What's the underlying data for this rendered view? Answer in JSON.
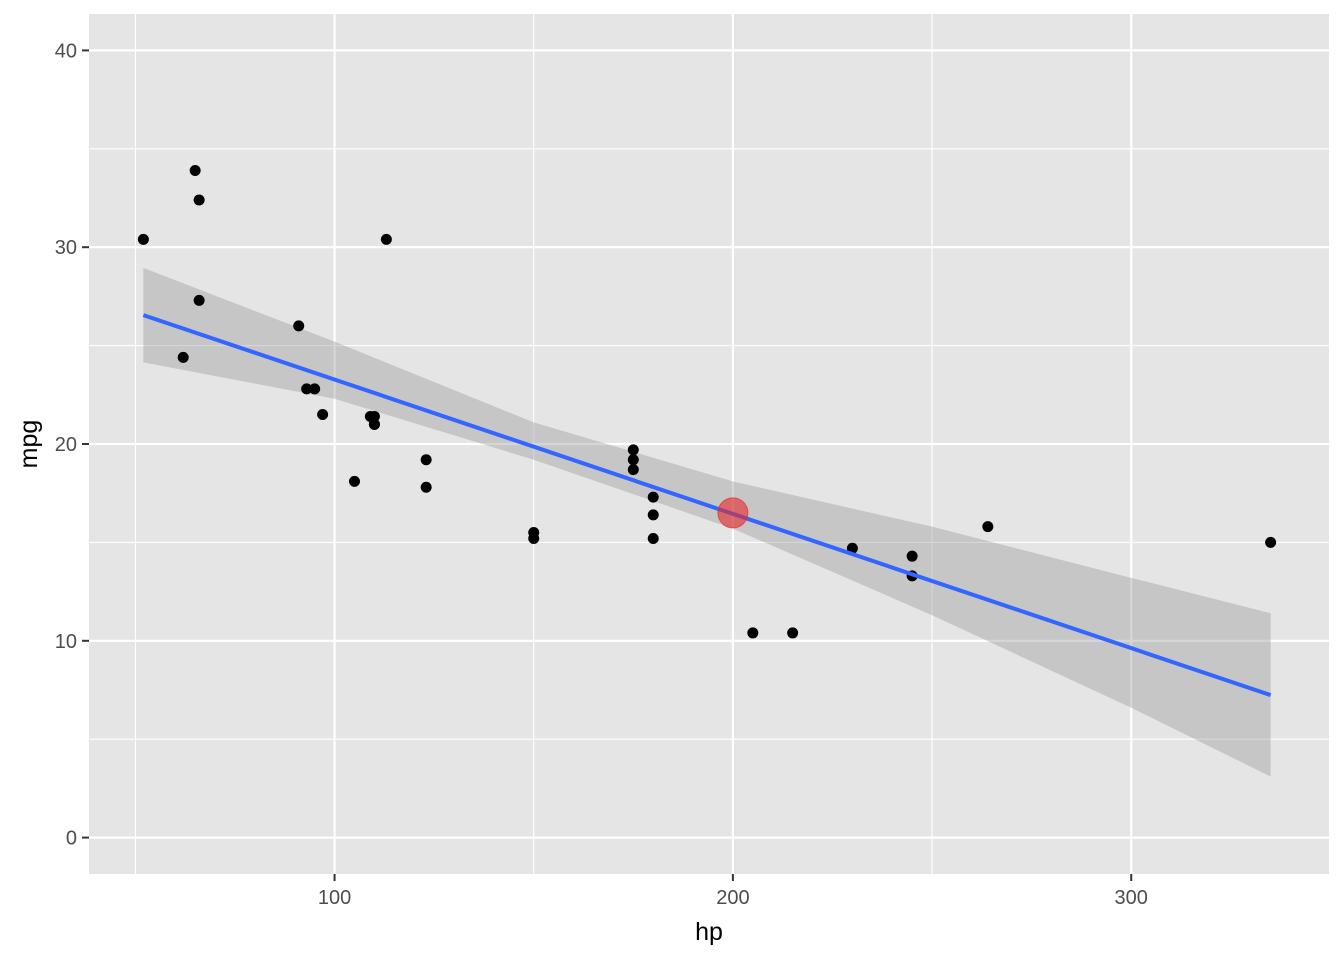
{
  "chart_data": {
    "type": "scatter",
    "title": "",
    "xlabel": "hp",
    "ylabel": "mpg",
    "xlim": [
      38.35,
      349.65
    ],
    "ylim": [
      -1.85,
      41.85
    ],
    "x_ticks": [
      100,
      200,
      300
    ],
    "y_ticks": [
      0,
      10,
      20,
      30,
      40
    ],
    "grid": true,
    "legend": "none",
    "points": [
      {
        "x": 110,
        "y": 21.0
      },
      {
        "x": 110,
        "y": 21.0
      },
      {
        "x": 93,
        "y": 22.8
      },
      {
        "x": 110,
        "y": 21.4
      },
      {
        "x": 175,
        "y": 18.7
      },
      {
        "x": 105,
        "y": 18.1
      },
      {
        "x": 245,
        "y": 14.3
      },
      {
        "x": 62,
        "y": 24.4
      },
      {
        "x": 95,
        "y": 22.8
      },
      {
        "x": 123,
        "y": 19.2
      },
      {
        "x": 123,
        "y": 17.8
      },
      {
        "x": 180,
        "y": 16.4
      },
      {
        "x": 180,
        "y": 17.3
      },
      {
        "x": 180,
        "y": 15.2
      },
      {
        "x": 205,
        "y": 10.4
      },
      {
        "x": 215,
        "y": 10.4
      },
      {
        "x": 230,
        "y": 14.7
      },
      {
        "x": 66,
        "y": 32.4
      },
      {
        "x": 52,
        "y": 30.4
      },
      {
        "x": 65,
        "y": 33.9
      },
      {
        "x": 97,
        "y": 21.5
      },
      {
        "x": 150,
        "y": 15.5
      },
      {
        "x": 150,
        "y": 15.2
      },
      {
        "x": 245,
        "y": 13.3
      },
      {
        "x": 175,
        "y": 19.2
      },
      {
        "x": 66,
        "y": 27.3
      },
      {
        "x": 91,
        "y": 26.0
      },
      {
        "x": 113,
        "y": 30.4
      },
      {
        "x": 264,
        "y": 15.8
      },
      {
        "x": 175,
        "y": 19.7
      },
      {
        "x": 335,
        "y": 15.0
      },
      {
        "x": 109,
        "y": 21.4
      }
    ],
    "fit_line": {
      "x": [
        52,
        335
      ],
      "y": [
        26.55,
        7.24
      ]
    },
    "confidence_band": {
      "x": [
        52,
        100,
        150,
        200,
        250,
        300,
        335
      ],
      "lower": [
        24.15,
        22.3,
        19.2,
        15.7,
        11.3,
        6.6,
        3.1
      ],
      "upper": [
        28.95,
        25.2,
        21.1,
        18.1,
        15.8,
        13.2,
        11.4
      ]
    },
    "highlight_point": {
      "x": 200,
      "y": 16.5
    },
    "colors": {
      "panel": "#e5e5e5",
      "grid": "#ffffff",
      "points": "#000000",
      "fit_line": "#3366ff",
      "band": "#999999",
      "highlight": "#e8282a"
    }
  }
}
